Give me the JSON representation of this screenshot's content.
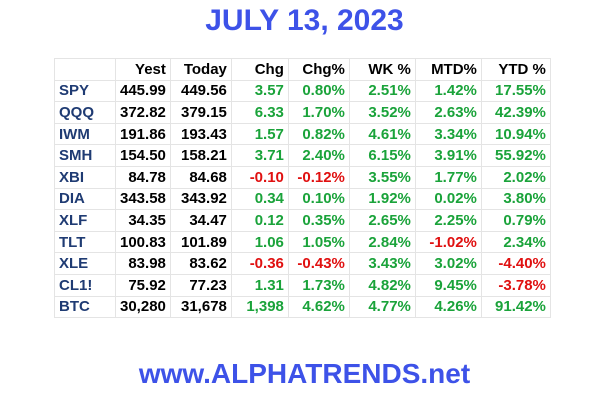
{
  "title": "JULY 13, 2023",
  "table": {
    "header": [
      "",
      "Yest",
      "Today",
      "Chg",
      "Chg%",
      "WK %",
      "MTD%",
      "YTD %"
    ],
    "rows": [
      [
        "SPY",
        "445.99",
        "449.56",
        "3.57",
        "0.80%",
        "2.51%",
        "1.42%",
        "17.55%"
      ],
      [
        "QQQ",
        "372.82",
        "379.15",
        "6.33",
        "1.70%",
        "3.52%",
        "2.63%",
        "42.39%"
      ],
      [
        "IWM",
        "191.86",
        "193.43",
        "1.57",
        "0.82%",
        "4.61%",
        "3.34%",
        "10.94%"
      ],
      [
        "SMH",
        "154.50",
        "158.21",
        "3.71",
        "2.40%",
        "6.15%",
        "3.91%",
        "55.92%"
      ],
      [
        "XBI",
        "84.78",
        "84.68",
        "-0.10",
        "-0.12%",
        "3.55%",
        "1.77%",
        "2.02%"
      ],
      [
        "DIA",
        "343.58",
        "343.92",
        "0.34",
        "0.10%",
        "1.92%",
        "0.02%",
        "3.80%"
      ],
      [
        "XLF",
        "34.35",
        "34.47",
        "0.12",
        "0.35%",
        "2.65%",
        "2.25%",
        "0.79%"
      ],
      [
        "TLT",
        "100.83",
        "101.89",
        "1.06",
        "1.05%",
        "2.84%",
        "-1.02%",
        "2.34%"
      ],
      [
        "XLE",
        "83.98",
        "83.62",
        "-0.36",
        "-0.43%",
        "3.43%",
        "3.02%",
        "-4.40%"
      ],
      [
        "CL1!",
        "75.92",
        "77.23",
        "1.31",
        "1.73%",
        "4.82%",
        "9.45%",
        "-3.78%"
      ],
      [
        "BTC",
        "30,280",
        "31,678",
        "1,398",
        "4.62%",
        "4.77%",
        "4.26%",
        "91.42%"
      ]
    ]
  },
  "footer": "www.ALPHATRENDS.net"
}
